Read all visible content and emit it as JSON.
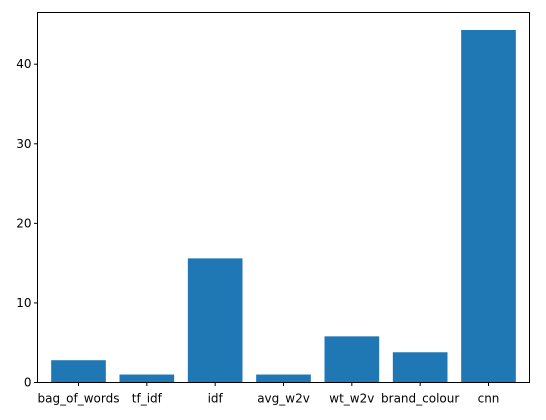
{
  "chart_data": {
    "type": "bar",
    "title": "",
    "xlabel": "",
    "ylabel": "",
    "categories": [
      "bag_of_words",
      "tf_idf",
      "idf",
      "avg_w2v",
      "wt_w2v",
      "brand_colour",
      "cnn"
    ],
    "values": [
      2.8,
      1.0,
      15.6,
      1.0,
      5.8,
      3.8,
      44.3
    ],
    "ylim": [
      0,
      46.5
    ],
    "yticks": [
      0,
      10,
      20,
      30,
      40
    ],
    "grid": false,
    "legend": "none",
    "bar_color": "#1f77b4"
  }
}
